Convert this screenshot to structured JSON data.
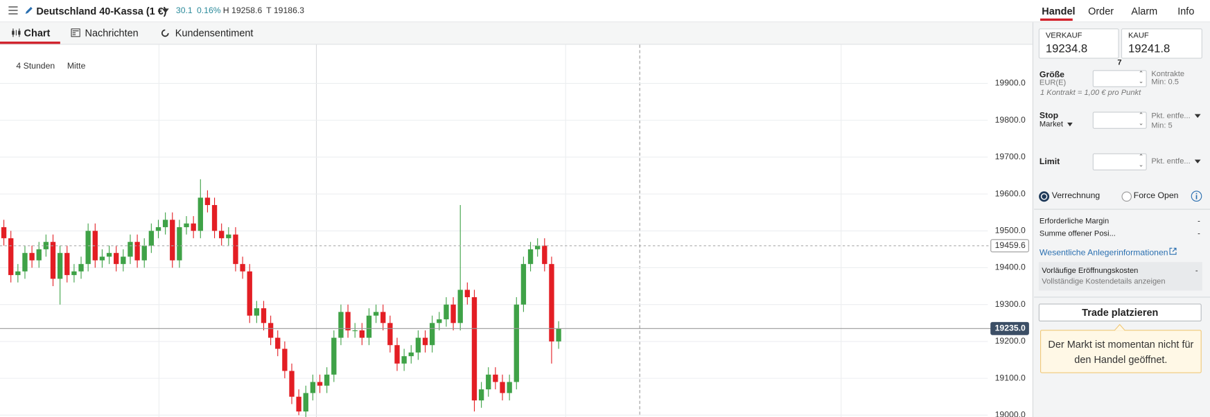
{
  "header": {
    "instrument": "Deutschland 40-Kassa (1 €)",
    "change": "30.1",
    "change_pct": "0.16%",
    "high": "H 19258.6",
    "low": "T 19186.3"
  },
  "nav_tabs": [
    "Handel",
    "Order",
    "Alarm",
    "Info"
  ],
  "chart_tabs": [
    "Chart",
    "Nachrichten",
    "Kundensentiment"
  ],
  "chart": {
    "type": "candlestick",
    "interval": "4 Stunden",
    "price_type": "Mitte",
    "up_color": "#3fa247",
    "down_color": "#e31e24",
    "open": [
      19510,
      19480,
      19380,
      19390,
      19440,
      19420,
      19450,
      19470,
      19370,
      19440,
      19380,
      19390,
      19410,
      19500,
      19420,
      19430,
      19440,
      19410,
      19430,
      19470,
      19420,
      19460,
      19500,
      19510,
      19530,
      19420,
      19510,
      19520,
      19500,
      19590,
      19570,
      19500,
      19480,
      19490,
      19410,
      19390,
      19270,
      19290,
      19250,
      19210,
      19180,
      19120,
      19050,
      19010,
      19060,
      19090,
      19080,
      19110,
      19210,
      19280,
      19230,
      19230,
      19210,
      19270,
      19280,
      19250,
      19190,
      19140,
      19160,
      19170,
      19210,
      19190,
      19250,
      19260,
      19300,
      19250,
      19340,
      19320,
      19040,
      19070,
      19110,
      19090,
      19060,
      19090,
      19300,
      19410,
      19450,
      19460,
      19410,
      19200
    ],
    "high": [
      19530,
      19500,
      19410,
      19460,
      19460,
      19470,
      19490,
      19490,
      19460,
      19460,
      19410,
      19430,
      19520,
      19520,
      19450,
      19460,
      19460,
      19450,
      19490,
      19490,
      19480,
      19520,
      19530,
      19550,
      19550,
      19530,
      19540,
      19540,
      19640,
      19610,
      19590,
      19520,
      19510,
      19510,
      19430,
      19410,
      19310,
      19310,
      19270,
      19230,
      19200,
      19140,
      19070,
      19080,
      19110,
      19110,
      19130,
      19230,
      19300,
      19300,
      19250,
      19250,
      19290,
      19300,
      19300,
      19270,
      19210,
      19180,
      19190,
      19230,
      19230,
      19270,
      19280,
      19320,
      19320,
      19570,
      19360,
      19340,
      19090,
      19130,
      19130,
      19110,
      19110,
      19320,
      19430,
      19470,
      19480,
      19480,
      19430,
      19255
    ],
    "low": [
      19460,
      19360,
      19360,
      19370,
      19400,
      19400,
      19430,
      19350,
      19300,
      19360,
      19360,
      19370,
      19390,
      19400,
      19400,
      19410,
      19390,
      19390,
      19410,
      19400,
      19400,
      19440,
      19480,
      19490,
      19400,
      19400,
      19490,
      19480,
      19480,
      19550,
      19480,
      19460,
      19460,
      19390,
      19370,
      19250,
      19250,
      19230,
      19190,
      19160,
      19100,
      19030,
      19000,
      18990,
      19040,
      19060,
      19060,
      19090,
      19190,
      19210,
      19210,
      19190,
      19190,
      19250,
      19230,
      19170,
      19120,
      19120,
      19140,
      19150,
      19170,
      19170,
      19230,
      19240,
      19230,
      19230,
      19300,
      19010,
      19020,
      19050,
      19070,
      19040,
      19040,
      19070,
      19280,
      19390,
      19430,
      19390,
      19140,
      19180
    ],
    "close": [
      19480,
      19380,
      19390,
      19440,
      19420,
      19450,
      19470,
      19370,
      19440,
      19380,
      19390,
      19410,
      19500,
      19420,
      19430,
      19440,
      19410,
      19430,
      19470,
      19420,
      19460,
      19500,
      19510,
      19530,
      19420,
      19510,
      19520,
      19500,
      19590,
      19570,
      19500,
      19480,
      19490,
      19410,
      19390,
      19270,
      19290,
      19250,
      19210,
      19180,
      19120,
      19050,
      19010,
      19060,
      19090,
      19080,
      19110,
      19210,
      19280,
      19230,
      19230,
      19210,
      19270,
      19280,
      19250,
      19190,
      19140,
      19160,
      19170,
      19210,
      19190,
      19250,
      19260,
      19300,
      19250,
      19340,
      19320,
      19040,
      19070,
      19110,
      19090,
      19060,
      19090,
      19300,
      19410,
      19450,
      19460,
      19410,
      19200,
      19235
    ],
    "ylim": [
      18995,
      20005
    ],
    "yticks": [
      {
        "value": 19900,
        "label": "19900.0"
      },
      {
        "value": 19800,
        "label": "19800.0"
      },
      {
        "value": 19700,
        "label": "19700.0"
      },
      {
        "value": 19600,
        "label": "19600.0"
      },
      {
        "value": 19500,
        "label": "19500.0"
      },
      {
        "value": 19400,
        "label": "19400.0"
      },
      {
        "value": 19300,
        "label": "19300.0"
      },
      {
        "value": 19200,
        "label": "19200.0"
      },
      {
        "value": 19100,
        "label": "19100.0"
      },
      {
        "value": 19000,
        "label": "19000.0"
      }
    ],
    "markers": [
      19459.6,
      {
        "value": 19235,
        "label": "19235.0"
      }
    ]
  },
  "ticket": {
    "sell_label": "VERKAUF",
    "sell_price": "19234.8",
    "buy_label": "KAUF",
    "buy_price": "19241.8",
    "spread": "7",
    "size_label": "Größe",
    "size_currency": "EUR(E)",
    "size_unit": "Kontrakte",
    "size_min": "Min: 0.5",
    "contract_note": "1 Kontrakt = 1,00 € pro Punkt",
    "stop_label": "Stop",
    "stop_type": "Market",
    "stop_unit": "Pkt. entfe...",
    "stop_min": "Min: 5",
    "limit_label": "Limit",
    "limit_unit": "Pkt. entfe...",
    "radio_1": "Verrechnung",
    "radio_2": "Force Open",
    "margin_label": "Erforderliche Margin",
    "margin_value": "-",
    "positions_label": "Summe offener Posi...",
    "positions_value": "-",
    "kid_link": "Wesentliche Anlegerinformationen",
    "costs_label": "Vorläufige Eröffnungskosten",
    "costs_value": "-",
    "costs_link": "Vollständige Kostendetails anzeigen",
    "button": "Trade platzieren",
    "notice": "Der Markt ist momentan nicht für den Handel geöffnet."
  }
}
